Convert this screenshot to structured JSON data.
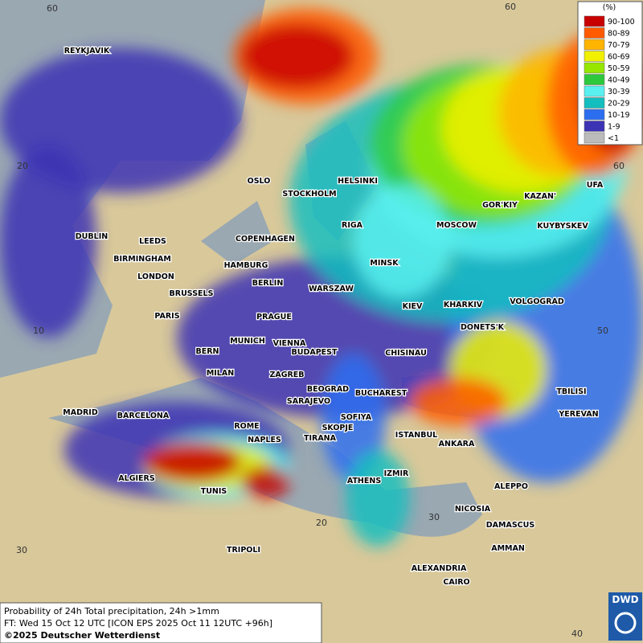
{
  "legend": {
    "title": "(%)",
    "items": [
      {
        "label": "90-100",
        "color": "#c80000"
      },
      {
        "label": "80-89",
        "color": "#ff5a00"
      },
      {
        "label": "70-79",
        "color": "#ffb400"
      },
      {
        "label": "60-69",
        "color": "#f0f000"
      },
      {
        "label": "50-59",
        "color": "#96e600"
      },
      {
        "label": "40-49",
        "color": "#2dc83c"
      },
      {
        "label": "30-39",
        "color": "#5af0f0"
      },
      {
        "label": "20-29",
        "color": "#14bebe"
      },
      {
        "label": "10-19",
        "color": "#2d6ef0"
      },
      {
        "label": "1-9",
        "color": "#3c32b4"
      },
      {
        "label": "<1",
        "color": "#bbbbbb"
      }
    ]
  },
  "cities": [
    "REYKJAVIK",
    "OSLO",
    "STOCKHOLM",
    "HELSINKI",
    "DUBLIN",
    "LEEDS",
    "BIRMINGHAM",
    "LONDON",
    "HAMBURG",
    "COPENHAGEN",
    "RIGA",
    "MOSCOW",
    "GOR'KIY",
    "KAZAN'",
    "UFA",
    "KUYBYSKEV",
    "MINSK",
    "BERLIN",
    "WARSZAW",
    "BRUSSELS",
    "PARIS",
    "PRAGUE",
    "KIEV",
    "KHARKIV",
    "VOLGOGRAD",
    "DONETS'K",
    "MUNICH",
    "VIENNA",
    "BUDAPEST",
    "BERN",
    "CHISINAU",
    "MILAN",
    "ZAGREB",
    "BEOGRAD",
    "BUCHAREST",
    "TBILISI",
    "MADRID",
    "BARCELONA",
    "SARAJEVO",
    "SOFIYA",
    "YEREVAN",
    "ROME",
    "SKOPJE",
    "ISTANBUL",
    "NAPLES",
    "TIRANA",
    "ANKARA",
    "ALGIERS",
    "IZMIR",
    "ATHENS",
    "ALEPPO",
    "TUNIS",
    "NICOSIA",
    "DAMASCUS",
    "AMMAN",
    "TRIPOLI",
    "ALEXANDRIA",
    "CAIRO"
  ],
  "grid_labels": [
    60,
    20,
    10,
    30,
    20,
    30,
    40,
    50,
    60,
    60
  ],
  "footer": {
    "line1": "Probability of 24h Total precipitation, 24h >1mm",
    "line2": "FT: Wed 15 Oct 12 UTC [ICON EPS 2025 Oct 11 12UTC +96h]",
    "copyright": "©2025 Deutscher Wetterdienst"
  },
  "logo": "DWD"
}
